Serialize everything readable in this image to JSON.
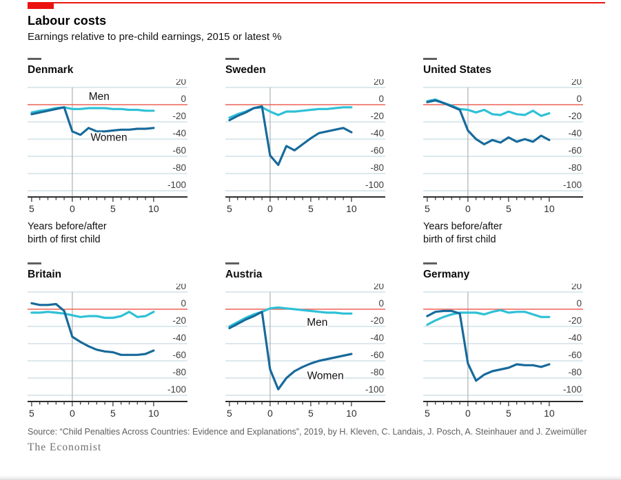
{
  "header": {
    "title": "Labour costs",
    "subtitle": "Earnings relative to pre-child earnings, 2015 or latest %"
  },
  "colors": {
    "banner": "#eb1310",
    "men": "#2fc0d6",
    "women": "#176a9b",
    "zero": "#ee6055",
    "grid": "#c8d9e2",
    "vline": "#aab2b6",
    "axis": "#2c2c2c",
    "xlabel": "#2e2e2e",
    "ylabel": "#3d3d3d"
  },
  "axis": {
    "x_ticks": [
      -5,
      0,
      5,
      10
    ],
    "x_tick_labels": [
      "5",
      "0",
      "5",
      "10"
    ],
    "y_ticks": [
      20,
      0,
      -20,
      -40,
      -60,
      -80,
      -100
    ],
    "x_caption_line1": "Years before/after",
    "x_caption_line2": "birth of first child"
  },
  "chart_data": [
    {
      "type": "line",
      "title": "Denmark",
      "xlabel": "Years before/after birth of first child",
      "ylabel": "Earnings relative to pre-child earnings, %",
      "ylim": [
        -100,
        20
      ],
      "x": [
        -5,
        -4,
        -3,
        -2,
        -1,
        0,
        1,
        2,
        3,
        4,
        5,
        6,
        7,
        8,
        9,
        10
      ],
      "series": [
        {
          "name": "Men",
          "values": [
            -9,
            -7,
            -6,
            -4,
            -3,
            -5,
            -5,
            -4,
            -4,
            -4,
            -5,
            -5,
            -6,
            -6,
            -7,
            -7
          ]
        },
        {
          "name": "Women",
          "values": [
            -11,
            -9,
            -7,
            -5,
            -3,
            -31,
            -35,
            -27,
            -31,
            -31,
            -30,
            -29,
            -29,
            -28,
            -28,
            -27
          ]
        }
      ],
      "annotations": [
        {
          "label": "Men",
          "x": 3.3,
          "y": 5.5
        },
        {
          "label": "Women",
          "x": 4.5,
          "y": -42
        }
      ]
    },
    {
      "type": "line",
      "title": "Sweden",
      "ylim": [
        -100,
        20
      ],
      "x": [
        -5,
        -4,
        -3,
        -2,
        -1,
        0,
        1,
        2,
        3,
        4,
        5,
        6,
        7,
        8,
        9,
        10
      ],
      "series": [
        {
          "name": "Men",
          "values": [
            -15,
            -11,
            -8,
            -4,
            -3,
            -8,
            -12,
            -8,
            -8,
            -7,
            -6,
            -5,
            -5,
            -4,
            -3,
            -3
          ]
        },
        {
          "name": "Women",
          "values": [
            -18,
            -13,
            -9,
            -4,
            -2,
            -59,
            -70,
            -48,
            -53,
            -46,
            -39,
            -33,
            -31,
            -29,
            -27,
            -32
          ]
        }
      ],
      "annotations": []
    },
    {
      "type": "line",
      "title": "United States",
      "xlabel": "Years before/after birth of first child",
      "ylim": [
        -100,
        20
      ],
      "x": [
        -5,
        -4,
        -3,
        -2,
        -1,
        0,
        1,
        2,
        3,
        4,
        5,
        6,
        7,
        8,
        9,
        10
      ],
      "series": [
        {
          "name": "Men",
          "values": [
            4,
            6,
            2,
            -1,
            -5,
            -6,
            -9,
            -6,
            -11,
            -12,
            -8,
            -11,
            -12,
            -7,
            -13,
            -10
          ]
        },
        {
          "name": "Women",
          "values": [
            3,
            5,
            2,
            -2,
            -6,
            -30,
            -40,
            -46,
            -41,
            -44,
            -38,
            -43,
            -40,
            -43,
            -36,
            -41
          ]
        }
      ],
      "annotations": []
    },
    {
      "type": "line",
      "title": "Britain",
      "ylim": [
        -100,
        20
      ],
      "x": [
        -5,
        -4,
        -3,
        -2,
        -1,
        0,
        1,
        2,
        3,
        4,
        5,
        6,
        7,
        8,
        9,
        10
      ],
      "series": [
        {
          "name": "Men",
          "values": [
            -4,
            -4,
            -3,
            -4,
            -5,
            -7,
            -9,
            -8,
            -8,
            -10,
            -10,
            -8,
            -3,
            -9,
            -8,
            -3
          ]
        },
        {
          "name": "Women",
          "values": [
            7,
            5,
            5,
            6,
            -2,
            -32,
            -38,
            -43,
            -47,
            -49,
            -50,
            -53,
            -53,
            -53,
            -52,
            -48
          ]
        }
      ],
      "annotations": []
    },
    {
      "type": "line",
      "title": "Austria",
      "ylim": [
        -100,
        20
      ],
      "x": [
        -5,
        -4,
        -3,
        -2,
        -1,
        0,
        1,
        2,
        3,
        4,
        5,
        6,
        7,
        8,
        9,
        10
      ],
      "series": [
        {
          "name": "Men",
          "values": [
            -20,
            -15,
            -10,
            -6,
            -3,
            1,
            2,
            1,
            0,
            -1,
            -2,
            -3,
            -4,
            -4,
            -5,
            -5
          ]
        },
        {
          "name": "Women",
          "values": [
            -22,
            -17,
            -12,
            -8,
            -3,
            -70,
            -93,
            -80,
            -72,
            -67,
            -63,
            -60,
            -58,
            -56,
            -54,
            -52
          ]
        }
      ],
      "annotations": [
        {
          "label": "Men",
          "x": 5.8,
          "y": -19
        },
        {
          "label": "Women",
          "x": 6.8,
          "y": -81
        }
      ]
    },
    {
      "type": "line",
      "title": "Germany",
      "ylim": [
        -100,
        20
      ],
      "x": [
        -5,
        -4,
        -3,
        -2,
        -1,
        0,
        1,
        2,
        3,
        4,
        5,
        6,
        7,
        8,
        9,
        10
      ],
      "series": [
        {
          "name": "Men",
          "values": [
            -18,
            -13,
            -9,
            -6,
            -4,
            -4,
            -4,
            -6,
            -3,
            -1,
            -4,
            -3,
            -3,
            -6,
            -9,
            -9
          ]
        },
        {
          "name": "Women",
          "values": [
            -8,
            -3,
            -2,
            -2,
            -5,
            -63,
            -83,
            -76,
            -72,
            -70,
            -68,
            -64,
            -65,
            -65,
            -67,
            -64
          ]
        }
      ],
      "annotations": []
    }
  ],
  "footer": {
    "source": "Source: “Child Penalties Across Countries: Evidence and Explanations”, 2019, by H. Kleven, C. Landais, J. Posch, A. Steinhauer and J. Zweimüller",
    "brand": "The Economist"
  }
}
